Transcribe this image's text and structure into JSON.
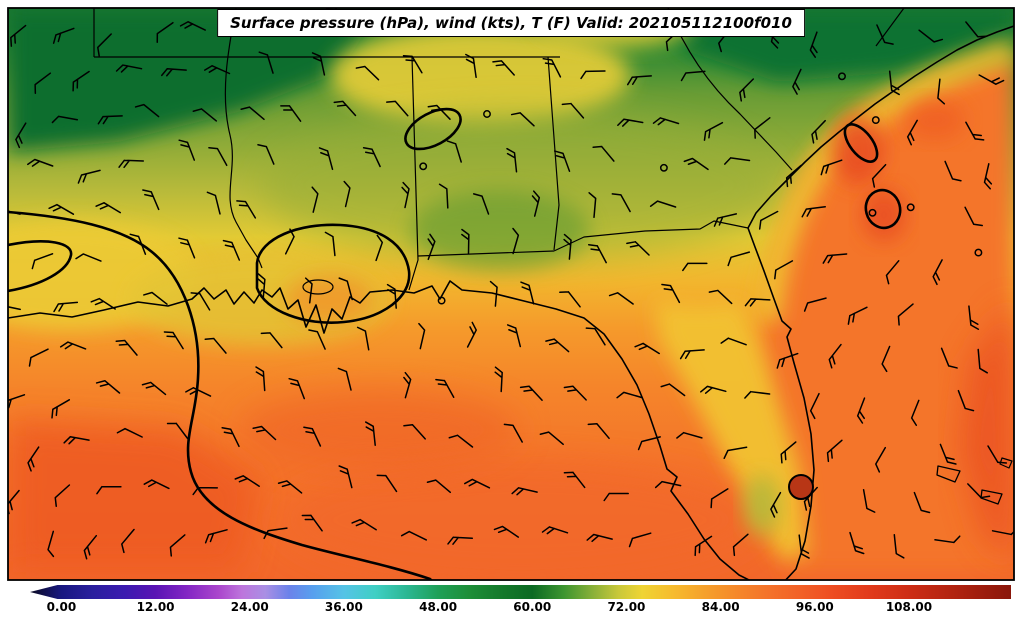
{
  "title": "Surface pressure (hPa), wind (kts), T (F) Valid: 202105112100f010",
  "chart_data": {
    "type": "heatmap",
    "title": "Surface pressure (hPa), wind (kts), T (F) Valid: 202105112100f010",
    "valid": "202105112100f010",
    "fields": [
      "Surface pressure (hPa) thick black contours",
      "wind barbs (kts)",
      "2m temperature shading (F)"
    ],
    "region": "Southeastern United States coastline, Gulf of Mexico and western Atlantic",
    "temperature_shading_estimates_f": {
      "north_inland": "55-70 (dark green to yellow-green)",
      "coastal_and_florida": "70-80 (yellow to gold)",
      "gulf_and_atlantic": "80-95 (orange to orange-red)"
    },
    "wind": {
      "symbol": "barb",
      "units": "kts",
      "calm_symbol": "open circle"
    },
    "pressure_contours": {
      "style": "thick black lines",
      "features": [
        "large contour sweeping from west edge through the Gulf",
        "closed contour over southeast Louisiana",
        "small closed oval over Alabama",
        "two small closed ovals offshore of the Carolinas/Georgia"
      ]
    },
    "colorbar": {
      "orientation": "horizontal",
      "position": "bottom",
      "extend_left_arrow": true,
      "domain": [
        -4,
        121
      ],
      "tick_values": [
        0,
        12,
        24,
        36,
        48,
        60,
        72,
        84,
        96,
        108
      ],
      "ticks": [
        "0.00",
        "12.00",
        "24.00",
        "36.00",
        "48.00",
        "60.00",
        "72.00",
        "84.00",
        "96.00",
        "108.00"
      ],
      "stops": [
        {
          "value": -4,
          "color": "#0b0b23"
        },
        {
          "value": 0,
          "color": "#181880"
        },
        {
          "value": 4,
          "color": "#2a1f9e"
        },
        {
          "value": 8,
          "color": "#3b1bb0"
        },
        {
          "value": 12,
          "color": "#5a14b4"
        },
        {
          "value": 16,
          "color": "#8326c4"
        },
        {
          "value": 20,
          "color": "#aa46cc"
        },
        {
          "value": 23,
          "color": "#bd75dc"
        },
        {
          "value": 26,
          "color": "#a98fe4"
        },
        {
          "value": 29,
          "color": "#6b82ea"
        },
        {
          "value": 32,
          "color": "#579fee"
        },
        {
          "value": 36,
          "color": "#55c3e6"
        },
        {
          "value": 40,
          "color": "#3fcfc4"
        },
        {
          "value": 44,
          "color": "#2bb793"
        },
        {
          "value": 48,
          "color": "#1fa058"
        },
        {
          "value": 52,
          "color": "#1e8e38"
        },
        {
          "value": 56,
          "color": "#157a2c"
        },
        {
          "value": 60,
          "color": "#0c6a23"
        },
        {
          "value": 64,
          "color": "#3d9530"
        },
        {
          "value": 68,
          "color": "#8fb239"
        },
        {
          "value": 71,
          "color": "#c9c83a"
        },
        {
          "value": 74,
          "color": "#efd434"
        },
        {
          "value": 78,
          "color": "#f6bb2e"
        },
        {
          "value": 82,
          "color": "#f5a02b"
        },
        {
          "value": 86,
          "color": "#f5882a"
        },
        {
          "value": 90,
          "color": "#f4732a"
        },
        {
          "value": 94,
          "color": "#f26127"
        },
        {
          "value": 98,
          "color": "#ee4e22"
        },
        {
          "value": 103,
          "color": "#e13a1b"
        },
        {
          "value": 108,
          "color": "#cd2d15"
        },
        {
          "value": 114,
          "color": "#b02310"
        },
        {
          "value": 121,
          "color": "#8a170b"
        }
      ]
    }
  }
}
